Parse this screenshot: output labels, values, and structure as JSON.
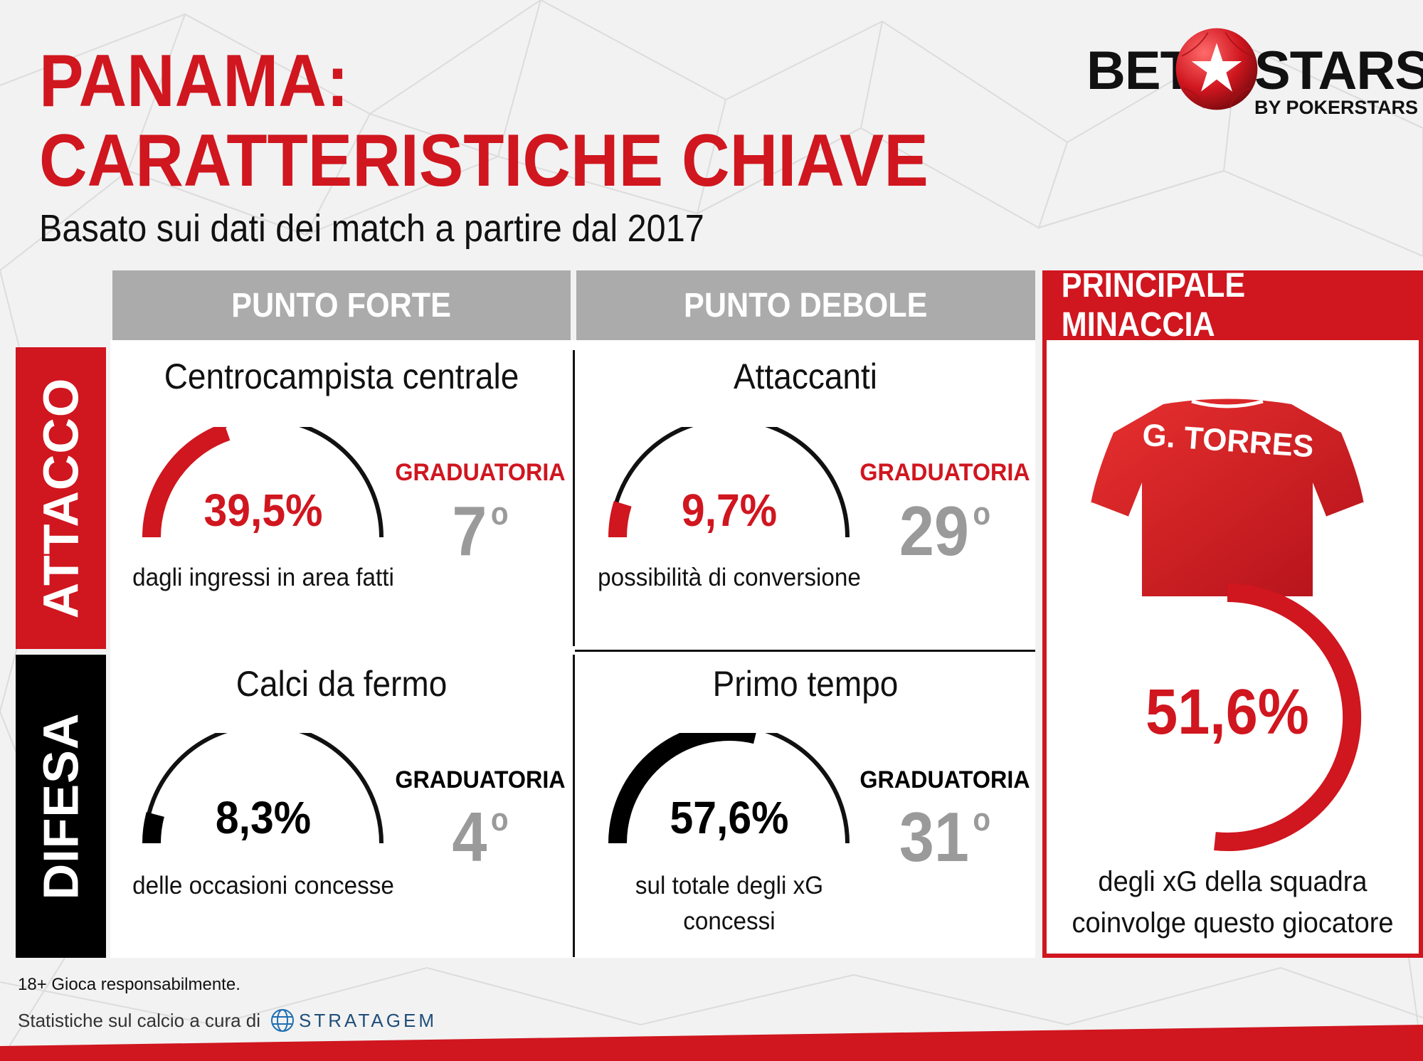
{
  "header": {
    "title_line1": "PANAMA:",
    "title_line2": "CARATTERISTICHE CHIAVE",
    "subtitle": "Basato sui dati dei match a partire dal 2017"
  },
  "logo": {
    "bet": "BET",
    "stars": "STARS",
    "by": "BY POKERSTARS",
    "icon": "star-ball-icon"
  },
  "columns": {
    "strength": "PUNTO FORTE",
    "weakness": "PUNTO DEBOLE",
    "threat": "PRINCIPALE MINACCIA"
  },
  "rows": {
    "attack": "ATTACCO",
    "defense": "DIFESA"
  },
  "cells": {
    "attack_strength": {
      "title": "Centrocampista centrale",
      "percent_label": "39,5%",
      "percent_value": 39.5,
      "description": "dagli ingressi in area fatti",
      "ranking_label": "GRADUATORIA",
      "rank": "7",
      "rank_suffix": "o"
    },
    "attack_weakness": {
      "title": "Attaccanti",
      "percent_label": "9,7%",
      "percent_value": 9.7,
      "description": "possibilità di conversione",
      "ranking_label": "GRADUATORIA",
      "rank": "29",
      "rank_suffix": "o"
    },
    "defense_strength": {
      "title": "Calci da fermo",
      "percent_label": "8,3%",
      "percent_value": 8.3,
      "description": "delle occasioni concesse",
      "ranking_label": "GRADUATORIA",
      "rank": "4",
      "rank_suffix": "o"
    },
    "defense_weakness": {
      "title": "Primo tempo",
      "percent_label": "57,6%",
      "percent_value": 57.6,
      "description_line1": "sul totale degli xG",
      "description_line2": "concessi",
      "ranking_label": "GRADUATORIA",
      "rank": "31",
      "rank_suffix": "o"
    }
  },
  "threat": {
    "player_name": "G. TORRES",
    "percent_label": "51,6%",
    "percent_value": 51.6,
    "description_line1": "degli xG della squadra",
    "description_line2": "coinvolge questo giocatore"
  },
  "footer": {
    "responsible": "18+ Gioca responsabilmente.",
    "credit": "Statistiche sul calcio a cura di",
    "partner": "STRATAGEM"
  },
  "colors": {
    "red": "#d0161f",
    "black": "#111111",
    "gray_header": "#ababab",
    "gray_rank": "#9a9a9a"
  }
}
